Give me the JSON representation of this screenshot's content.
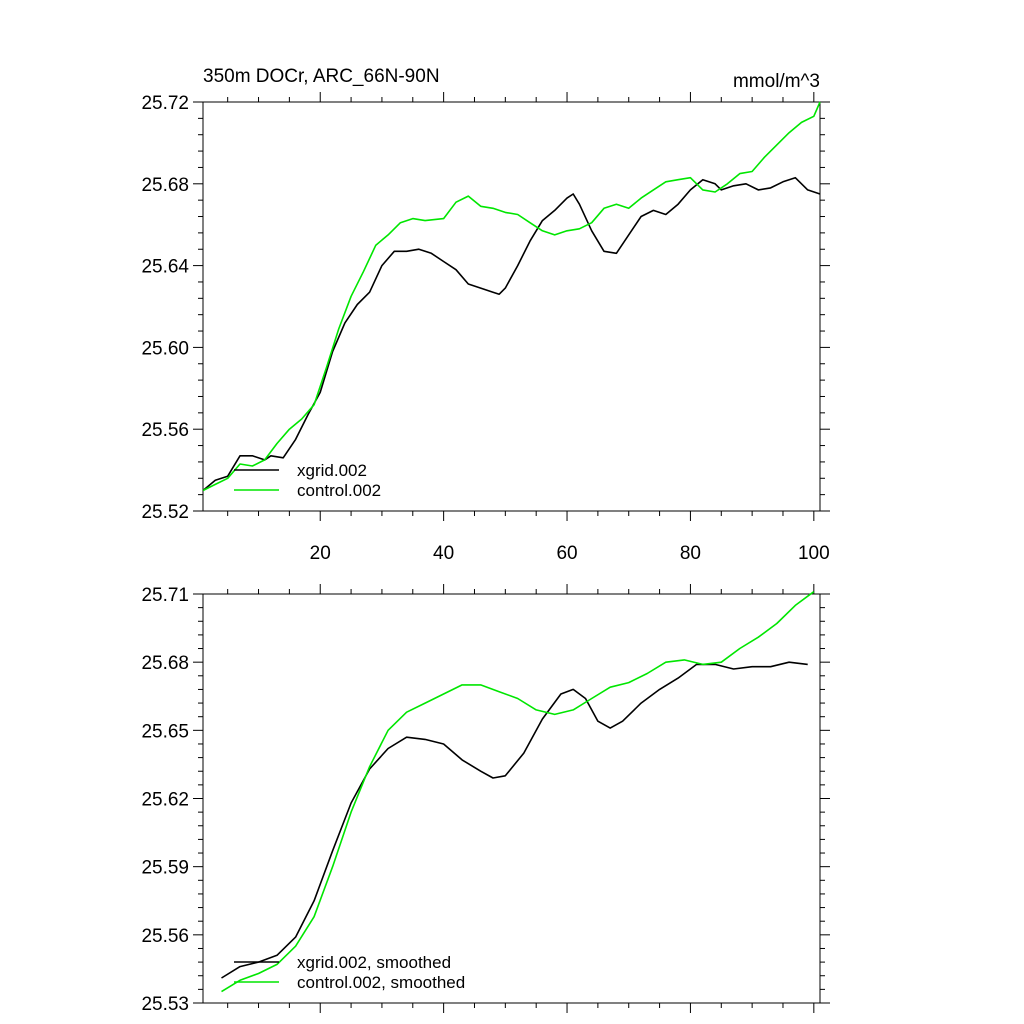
{
  "chart_data": [
    {
      "type": "line",
      "title": "350m DOCr, ARC_66N-90N",
      "units": "mmol/m^3",
      "xlim": [
        1,
        101
      ],
      "ylim": [
        25.52,
        25.72
      ],
      "xticks": [
        20,
        40,
        60,
        80,
        100
      ],
      "yticks": [
        25.52,
        25.56,
        25.6,
        25.64,
        25.68,
        25.72
      ],
      "ytick_labels": [
        "25.52",
        "25.56",
        "25.60",
        "25.64",
        "25.68",
        "25.72"
      ],
      "grid": false,
      "legend_position": "bottom-left",
      "series": [
        {
          "name": "xgrid.002",
          "color": "#000000",
          "points": [
            [
              1,
              25.53
            ],
            [
              3,
              25.535
            ],
            [
              5,
              25.537
            ],
            [
              7,
              25.547
            ],
            [
              9,
              25.547
            ],
            [
              11,
              25.545
            ],
            [
              12,
              25.547
            ],
            [
              14,
              25.546
            ],
            [
              16,
              25.555
            ],
            [
              18,
              25.567
            ],
            [
              20,
              25.578
            ],
            [
              22,
              25.598
            ],
            [
              24,
              25.612
            ],
            [
              26,
              25.621
            ],
            [
              28,
              25.627
            ],
            [
              30,
              25.64
            ],
            [
              32,
              25.647
            ],
            [
              34,
              25.647
            ],
            [
              36,
              25.648
            ],
            [
              38,
              25.646
            ],
            [
              40,
              25.642
            ],
            [
              42,
              25.638
            ],
            [
              44,
              25.631
            ],
            [
              46,
              25.629
            ],
            [
              48,
              25.627
            ],
            [
              49,
              25.626
            ],
            [
              50,
              25.629
            ],
            [
              52,
              25.64
            ],
            [
              54,
              25.652
            ],
            [
              56,
              25.662
            ],
            [
              58,
              25.667
            ],
            [
              60,
              25.673
            ],
            [
              61,
              25.675
            ],
            [
              62,
              25.67
            ],
            [
              64,
              25.657
            ],
            [
              66,
              25.647
            ],
            [
              68,
              25.646
            ],
            [
              70,
              25.655
            ],
            [
              72,
              25.664
            ],
            [
              74,
              25.667
            ],
            [
              76,
              25.665
            ],
            [
              78,
              25.67
            ],
            [
              80,
              25.677
            ],
            [
              82,
              25.682
            ],
            [
              84,
              25.68
            ],
            [
              85,
              25.677
            ],
            [
              87,
              25.679
            ],
            [
              89,
              25.68
            ],
            [
              91,
              25.677
            ],
            [
              93,
              25.678
            ],
            [
              95,
              25.681
            ],
            [
              97,
              25.683
            ],
            [
              99,
              25.677
            ],
            [
              101,
              25.675
            ]
          ]
        },
        {
          "name": "control.002",
          "color": "#00e600",
          "points": [
            [
              1,
              25.53
            ],
            [
              3,
              25.533
            ],
            [
              5,
              25.536
            ],
            [
              7,
              25.543
            ],
            [
              9,
              25.542
            ],
            [
              11,
              25.545
            ],
            [
              13,
              25.553
            ],
            [
              15,
              25.56
            ],
            [
              17,
              25.565
            ],
            [
              19,
              25.572
            ],
            [
              21,
              25.59
            ],
            [
              23,
              25.609
            ],
            [
              25,
              25.625
            ],
            [
              27,
              25.637
            ],
            [
              29,
              25.65
            ],
            [
              31,
              25.655
            ],
            [
              33,
              25.661
            ],
            [
              35,
              25.663
            ],
            [
              37,
              25.662
            ],
            [
              40,
              25.663
            ],
            [
              42,
              25.671
            ],
            [
              44,
              25.674
            ],
            [
              46,
              25.669
            ],
            [
              48,
              25.668
            ],
            [
              50,
              25.666
            ],
            [
              52,
              25.665
            ],
            [
              54,
              25.661
            ],
            [
              56,
              25.657
            ],
            [
              58,
              25.655
            ],
            [
              60,
              25.657
            ],
            [
              62,
              25.658
            ],
            [
              64,
              25.661
            ],
            [
              66,
              25.668
            ],
            [
              68,
              25.67
            ],
            [
              70,
              25.668
            ],
            [
              72,
              25.673
            ],
            [
              74,
              25.677
            ],
            [
              76,
              25.681
            ],
            [
              78,
              25.682
            ],
            [
              80,
              25.683
            ],
            [
              82,
              25.677
            ],
            [
              84,
              25.676
            ],
            [
              86,
              25.68
            ],
            [
              88,
              25.685
            ],
            [
              90,
              25.686
            ],
            [
              92,
              25.693
            ],
            [
              94,
              25.699
            ],
            [
              96,
              25.705
            ],
            [
              98,
              25.71
            ],
            [
              100,
              25.713
            ],
            [
              101,
              25.72
            ]
          ]
        }
      ]
    },
    {
      "type": "line",
      "xlim": [
        1,
        101
      ],
      "ylim": [
        25.53,
        25.71
      ],
      "xticks": [
        20,
        40,
        60,
        80,
        100
      ],
      "yticks": [
        25.53,
        25.56,
        25.59,
        25.62,
        25.65,
        25.68,
        25.71
      ],
      "ytick_labels": [
        "25.53",
        "25.56",
        "25.59",
        "25.62",
        "25.65",
        "25.68",
        "25.71"
      ],
      "grid": false,
      "legend_position": "bottom-left",
      "series": [
        {
          "name": "xgrid.002, smoothed",
          "color": "#000000",
          "points": [
            [
              4,
              25.541
            ],
            [
              7,
              25.546
            ],
            [
              10,
              25.548
            ],
            [
              13,
              25.551
            ],
            [
              16,
              25.559
            ],
            [
              19,
              25.575
            ],
            [
              22,
              25.597
            ],
            [
              25,
              25.618
            ],
            [
              28,
              25.633
            ],
            [
              31,
              25.642
            ],
            [
              34,
              25.647
            ],
            [
              37,
              25.646
            ],
            [
              40,
              25.644
            ],
            [
              43,
              25.637
            ],
            [
              46,
              25.632
            ],
            [
              48,
              25.629
            ],
            [
              50,
              25.63
            ],
            [
              53,
              25.64
            ],
            [
              56,
              25.655
            ],
            [
              59,
              25.666
            ],
            [
              61,
              25.668
            ],
            [
              63,
              25.664
            ],
            [
              65,
              25.654
            ],
            [
              67,
              25.651
            ],
            [
              69,
              25.654
            ],
            [
              72,
              25.662
            ],
            [
              75,
              25.668
            ],
            [
              78,
              25.673
            ],
            [
              81,
              25.679
            ],
            [
              84,
              25.679
            ],
            [
              87,
              25.677
            ],
            [
              90,
              25.678
            ],
            [
              93,
              25.678
            ],
            [
              96,
              25.68
            ],
            [
              99,
              25.679
            ]
          ]
        },
        {
          "name": "control.002, smoothed",
          "color": "#00e600",
          "points": [
            [
              4,
              25.535
            ],
            [
              7,
              25.54
            ],
            [
              10,
              25.543
            ],
            [
              13,
              25.547
            ],
            [
              16,
              25.555
            ],
            [
              19,
              25.568
            ],
            [
              22,
              25.59
            ],
            [
              25,
              25.614
            ],
            [
              28,
              25.634
            ],
            [
              31,
              25.65
            ],
            [
              34,
              25.658
            ],
            [
              37,
              25.662
            ],
            [
              40,
              25.666
            ],
            [
              43,
              25.67
            ],
            [
              46,
              25.67
            ],
            [
              49,
              25.667
            ],
            [
              52,
              25.664
            ],
            [
              55,
              25.659
            ],
            [
              58,
              25.657
            ],
            [
              61,
              25.659
            ],
            [
              64,
              25.664
            ],
            [
              67,
              25.669
            ],
            [
              70,
              25.671
            ],
            [
              73,
              25.675
            ],
            [
              76,
              25.68
            ],
            [
              79,
              25.681
            ],
            [
              82,
              25.679
            ],
            [
              85,
              25.68
            ],
            [
              88,
              25.686
            ],
            [
              91,
              25.691
            ],
            [
              94,
              25.697
            ],
            [
              97,
              25.705
            ],
            [
              100,
              25.711
            ]
          ]
        }
      ]
    }
  ]
}
